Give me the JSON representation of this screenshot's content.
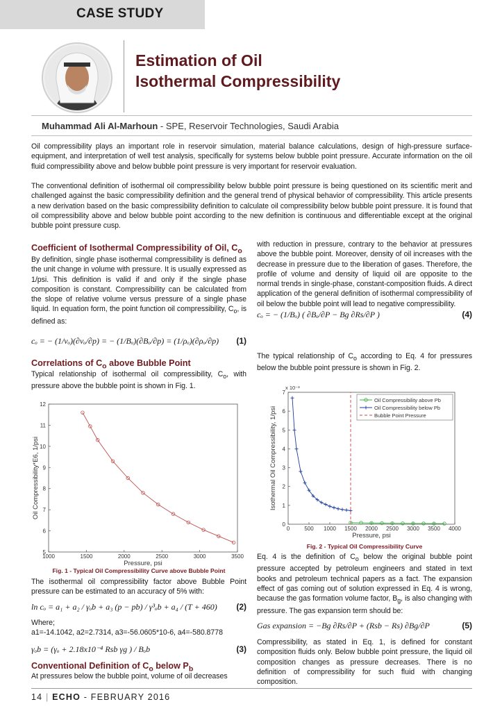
{
  "header": {
    "section": "CASE STUDY",
    "title": "Estimation of Oil Isothermal Compressibility",
    "author": "Muhammad Ali Al-Marhoun",
    "affiliation": " - SPE, Reservoir Technologies, Saudi Arabia"
  },
  "intro": [
    "Oil compressibility plays an important role in reservoir simulation, material balance calculations, design of high-pressure surface-equipment, and interpretation of well test analysis, specifically for systems below bubble point pressure. Accurate information on the oil fluid compressibility above and below bubble point pressure is very important for reservoir evaluation.",
    "The conventional definition of isothermal oil compressibility below bubble point pressure is being questioned on its scientific merit and challenged against the basic compressibility definition and the general trend of physical behavior of compressibility. This article presents a new derivation based on the basic compressibility definition to calculate oil compressibility below bubble point pressure. It is found that oil compressibility above and below bubble point according to the new definition is continuous and differentiable except at the original bubble point pressure cusp."
  ],
  "left": [
    {
      "heading": [
        "Coefficient of Isothermal Compressibility of Oil, C",
        {
          "sub": "o"
        }
      ]
    },
    {
      "text": [
        "By definition, single phase isothermal compressibility is defined as the unit change in volume with pressure. It is usually expressed as 1/psi. This definition is valid if and only if the single phase composition is constant. Compressibility can be calculated from the slope of relative volume versus pressure of a single phase liquid. In equation form, the point function oil compressibility, C",
        {
          "sub": "o"
        },
        ", is defined as:"
      ]
    },
    {
      "equation": "cₒ = − (1/vₒ)(∂vₒ/∂p) = − (1/Bₒ)(∂Bₒ/∂p) = (1/ρₒ)(∂ρₒ/∂p)",
      "number": "(1)"
    },
    {
      "heading": [
        "Correlations of C",
        {
          "sub": "o"
        },
        " above Bubble Point"
      ]
    },
    {
      "text": [
        "Typical relationship of isothermal oil compressibility, C",
        {
          "sub": "o"
        },
        ", with pressure above the bubble point is shown in Fig. 1."
      ]
    },
    {
      "text": "The isothermal oil compressibility factor above Bubble Point pressure can be estimated to an accuracy of 5% with:"
    },
    {
      "equation": "ln cₒ = a₁ + a₂ / γₒb + a₃ (p − pb) / γ³ₒb + a₄ / (T + 460)",
      "number": "(2)"
    },
    {
      "text": "Where;"
    },
    {
      "text": "a1=-14.1042, a2=2.7314, a3=-56.0605*10-6, a4=-580.8778"
    },
    {
      "equation": "γₒb = (γₒ + 2.18x10⁻⁴ Rsb  γg ) / Bₒb",
      "number": "(3)"
    },
    {
      "heading": [
        "Conventional Definition of C",
        {
          "sub": "o"
        },
        " below P",
        {
          "sub": "b"
        }
      ]
    },
    {
      "text": "At pressures below the bubble point, volume of oil decreases"
    }
  ],
  "right": [
    {
      "text": "with reduction in pressure, contrary to the behavior at pressures above the bubble point. Moreover, density of oil increases with the decrease in pressure due to the liberation of gases. Therefore, the profile of volume and density of liquid oil are opposite to the normal trends in single-phase, constant-composition fluids. A direct application of the general definition of isothermal compressibility of oil below the bubble point will lead to negative compressibility."
    },
    {
      "equation": "cₒ = − (1/Bₒ) ( ∂Bₒ/∂P − Bg ∂Rs/∂P )",
      "number": "(4)"
    },
    {
      "text": [
        "The typical relationship of C",
        {
          "sub": "o"
        },
        " according to Eq. 4 for pressures below the bubble point pressure is shown in Fig. 2."
      ]
    },
    {
      "text": [
        "Eq. 4 is the definition of C",
        {
          "sub": "o"
        },
        " below the original bubble point pressure accepted by petroleum engineers and stated in text books and petroleum technical papers as a fact. The expansion effect of gas coming out of solution expressed in Eq. 4 is wrong, because the gas formation volume factor, B",
        {
          "sub": "g"
        },
        ", is also changing with pressure. The gas expansion term should be:"
      ]
    },
    {
      "equation": "Gas expansion = −Bg ∂Rs/∂P + (Rsb − Rs) ∂Bg/∂P",
      "number": "(5)"
    },
    {
      "text": "Compressibility, as stated in Eq. 1, is defined for constant composition fluids only. Below bubble point pressure, the liquid oil composition changes as pressure decreases. There is no definition of compressibility for such fluid with changing composition."
    }
  ],
  "footer": {
    "page": "14",
    "separator": "|",
    "magazine": "ECHO",
    "date": "- FEBRUARY 2016"
  },
  "chart_data": [
    {
      "type": "line",
      "caption": "Fig. 1 - Typical Oil Compressibility Curve above Bubble Point",
      "xlabel": "Pressure, psi",
      "ylabel": "Oil Compressibility*E6, 1/psi",
      "xlim": [
        1000,
        3500
      ],
      "xticks": [
        1000,
        1500,
        2000,
        2500,
        3000,
        3500
      ],
      "ylim": [
        5,
        12
      ],
      "yticks": [
        5,
        6,
        7,
        8,
        9,
        10,
        11,
        12
      ],
      "grid": false,
      "series": [
        {
          "color": "#c0504d",
          "marker": "circle",
          "x": [
            1450,
            1550,
            1650,
            1850,
            2050,
            2250,
            2450,
            2650,
            2850,
            3050,
            3250,
            3450
          ],
          "values": [
            11.6,
            10.95,
            10.3,
            9.3,
            8.5,
            7.8,
            7.25,
            6.8,
            6.4,
            6.05,
            5.75,
            5.45
          ]
        }
      ]
    },
    {
      "type": "line",
      "caption": "Fig. 2 - Typical Oil Compressibility Curve",
      "xlabel": "Pressure, psi",
      "ylabel": "Isothermal Oil Compressibility, 1/psi",
      "y_exponent_label": "x 10⁻³",
      "xlim": [
        0,
        4000
      ],
      "xticks": [
        0,
        500,
        1000,
        1500,
        2000,
        2500,
        3000,
        3500,
        4000
      ],
      "ylim": [
        0,
        7
      ],
      "yticks": [
        0,
        1,
        2,
        3,
        4,
        5,
        6,
        7
      ],
      "grid": false,
      "legend": "northeast",
      "series": [
        {
          "name": "Oil Compressibility above Pb",
          "color": "#3cb043",
          "marker": "circle",
          "x": [
            1500,
            1750,
            2000,
            2250,
            2500,
            2750,
            3000,
            3250,
            3500,
            3750
          ],
          "values": [
            0.08,
            0.07,
            0.06,
            0.055,
            0.05,
            0.045,
            0.04,
            0.038,
            0.035,
            0.033
          ]
        },
        {
          "name": "Oil Compressibility below Pb",
          "color": "#1f3c99",
          "marker": "plus",
          "x": [
            100,
            150,
            200,
            300,
            400,
            500,
            600,
            700,
            800,
            900,
            1000,
            1100,
            1200,
            1300,
            1400,
            1500
          ],
          "values": [
            6.7,
            5.0,
            4.0,
            2.8,
            2.2,
            1.8,
            1.5,
            1.3,
            1.15,
            1.05,
            0.95,
            0.88,
            0.82,
            0.78,
            0.75,
            0.72
          ]
        },
        {
          "name": "Bubble Point Pressure",
          "color": "#d04040",
          "line": "dashed",
          "x": [
            1500,
            1500
          ],
          "values": [
            0,
            7
          ]
        }
      ]
    }
  ]
}
